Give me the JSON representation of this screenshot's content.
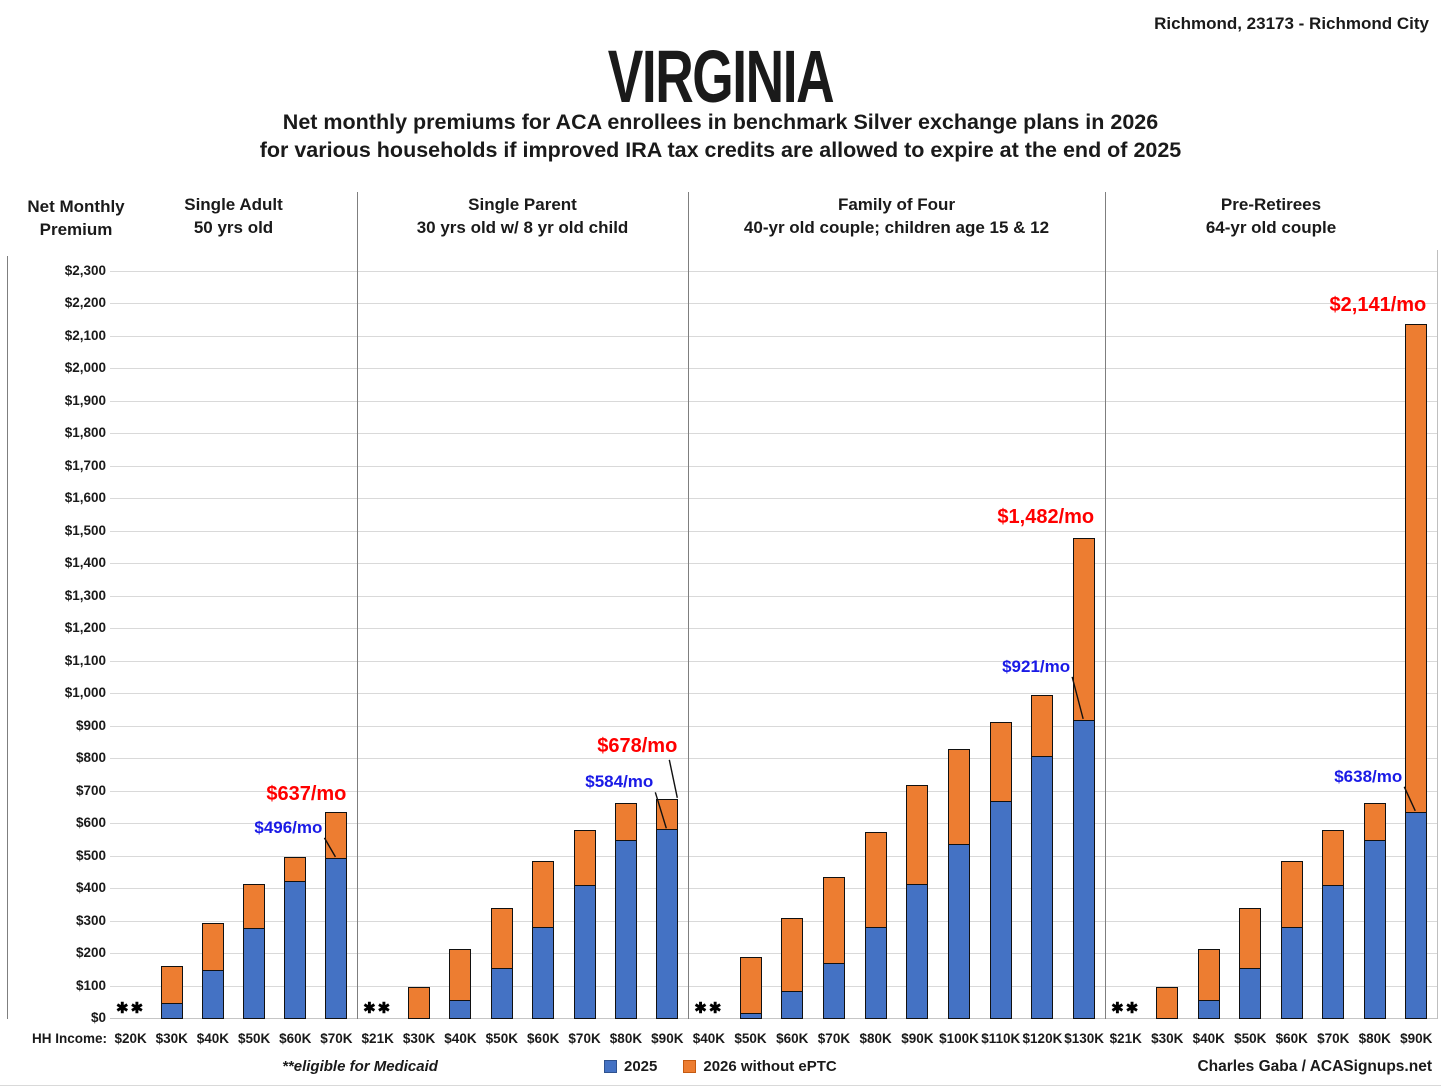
{
  "location": "Richmond, 23173 - Richmond City",
  "title": "VIRGINIA",
  "subtitle_line1": "Net monthly premiums for ACA enrollees in benchmark Silver exchange plans in 2026",
  "subtitle_line2": "for various households if improved IRA tax credits are allowed to expire at the end of 2025",
  "y_axis_title_line1": "Net Monthly",
  "y_axis_title_line2": "Premium",
  "hh_income_label": "HH Income:",
  "medicaid_note": "**eligible for Medicaid",
  "medicaid_marker": "✱✱",
  "credit": "Charles Gaba / ACASignups.net",
  "legend": [
    {
      "label": "2025",
      "color": "#4472C4"
    },
    {
      "label": "2026 without ePTC",
      "color": "#ED7D31"
    }
  ],
  "colors": {
    "bar_2025": "#4472C4",
    "bar_2025_border": "#111111",
    "bar_2026": "#ED7D31",
    "label_red": "#FF0000",
    "label_blue": "#1A1AE6",
    "gridline": "#D9D9D9",
    "baseline": "#C6C6C6",
    "divider": "#7F7F7F",
    "side_border": "#BFBFBF",
    "swatch_border_2025": "#2F528F",
    "swatch_border_2026": "#C55A11"
  },
  "chart_data": {
    "type": "bar",
    "title": "VIRGINIA",
    "ylabel": "Net Monthly Premium",
    "ylim": [
      0,
      2300
    ],
    "ytick_interval": 100,
    "ytick_format": "$#,##0",
    "grid": "horizontal",
    "legend_position": "bottom-center",
    "series_names": [
      "2025",
      "2026 without ePTC"
    ],
    "note": "Orange segment drawn from the 2025 value up to the 2026 total; null = **eligible for Medicaid (no bar)",
    "groups": [
      {
        "title_line1": "Single Adult",
        "title_line2": "50 yrs old",
        "incomes": [
          "$20K",
          "$30K",
          "$40K",
          "$50K",
          "$60K",
          "$70K"
        ],
        "values_2025": [
          null,
          48,
          151,
          280,
          425,
          496
        ],
        "values_2026": [
          null,
          162,
          297,
          415,
          499,
          637
        ],
        "label_2026": "$637/mo",
        "label_2025": "$496/mo"
      },
      {
        "title_line1": "Single Parent",
        "title_line2": "30 yrs old w/ 8 yr old child",
        "incomes": [
          "$21K",
          "$30K",
          "$40K",
          "$50K",
          "$60K",
          "$70K",
          "$80K",
          "$90K"
        ],
        "values_2025": [
          null,
          0,
          58,
          156,
          284,
          413,
          550,
          584
        ],
        "values_2026": [
          null,
          97,
          214,
          343,
          488,
          582,
          665,
          678
        ],
        "label_2026": "$678/mo",
        "label_2025": "$584/mo"
      },
      {
        "title_line1": "Family of Four",
        "title_line2": "40-yr old couple; children age 15 & 12",
        "incomes": [
          "$40K",
          "$50K",
          "$60K",
          "$70K",
          "$80K",
          "$90K",
          "$100K",
          "$110K",
          "$120K",
          "$130K"
        ],
        "values_2025": [
          null,
          20,
          85,
          173,
          283,
          415,
          540,
          670,
          810,
          921
        ],
        "values_2026": [
          null,
          192,
          310,
          437,
          575,
          719,
          830,
          915,
          997,
          1482
        ],
        "label_2026": "$1,482/mo",
        "label_2025": "$921/mo"
      },
      {
        "title_line1": "Pre-Retirees",
        "title_line2": "64-yr old couple",
        "incomes": [
          "$21K",
          "$30K",
          "$40K",
          "$50K",
          "$60K",
          "$70K",
          "$80K",
          "$90K"
        ],
        "values_2025": [
          null,
          0,
          58,
          156,
          284,
          413,
          550,
          638
        ],
        "values_2026": [
          null,
          97,
          214,
          343,
          488,
          582,
          665,
          2141
        ],
        "label_2026": "$2,141/mo",
        "label_2025": "$638/mo"
      }
    ]
  }
}
